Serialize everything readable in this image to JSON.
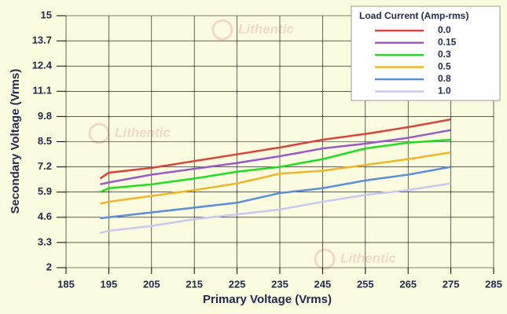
{
  "chart_data": {
    "type": "line",
    "x_label": "Primary Voltage (Vrms)",
    "y_label": "Secondary Voltage (Vrms)",
    "legend_title": "Load Current (Amp-rms)",
    "legend": "upper right",
    "watermark": "Lithentic",
    "grid": true,
    "x": [
      193,
      195,
      205,
      215,
      225,
      235,
      245,
      255,
      265,
      275
    ],
    "xlim": [
      185,
      285
    ],
    "xticks": [
      185,
      195,
      205,
      215,
      225,
      235,
      245,
      255,
      265,
      275,
      285
    ],
    "ylim": [
      2,
      15
    ],
    "yticks": [
      2,
      3.3,
      4.6,
      5.9,
      7.2,
      8.5,
      9.8,
      11.1,
      12.4,
      13.7,
      15
    ],
    "series": [
      {
        "name": "0.0",
        "color": "#d9443a",
        "values": [
          6.6,
          6.9,
          7.15,
          7.5,
          7.85,
          8.2,
          8.6,
          8.9,
          9.25,
          9.65
        ]
      },
      {
        "name": "0.15",
        "color": "#9b59c6",
        "values": [
          6.3,
          6.4,
          6.8,
          7.1,
          7.4,
          7.75,
          8.15,
          8.4,
          8.7,
          9.1
        ]
      },
      {
        "name": "0.3",
        "color": "#22dd22",
        "values": [
          5.9,
          6.1,
          6.3,
          6.6,
          6.95,
          7.2,
          7.6,
          8.15,
          8.45,
          8.6
        ]
      },
      {
        "name": "0.5",
        "color": "#f0b62a",
        "values": [
          5.3,
          5.4,
          5.7,
          6.0,
          6.35,
          6.85,
          7.0,
          7.3,
          7.6,
          7.95
        ]
      },
      {
        "name": "0.8",
        "color": "#5b8fd9",
        "values": [
          4.55,
          4.6,
          4.85,
          5.1,
          5.35,
          5.85,
          6.1,
          6.5,
          6.8,
          7.2
        ]
      },
      {
        "name": "1.0",
        "color": "#c8c8f0",
        "values": [
          3.8,
          3.9,
          4.15,
          4.5,
          4.75,
          5.0,
          5.4,
          5.75,
          6.0,
          6.35
        ]
      }
    ]
  }
}
